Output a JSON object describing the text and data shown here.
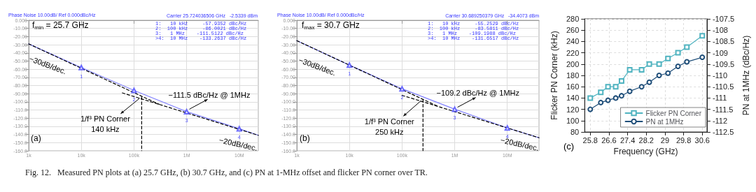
{
  "chart_data": [
    {
      "type": "line",
      "xlim": [
        1000,
        23000000
      ],
      "xticks": [
        {
          "value": 1000,
          "label": "1k"
        },
        {
          "value": 10000,
          "label": "10k"
        },
        {
          "value": 100000,
          "label": "100k"
        },
        {
          "value": 1000000,
          "label": "1M"
        },
        {
          "value": 10000000,
          "label": "10M"
        }
      ],
      "log": "x",
      "ylim": [
        -160,
        0
      ],
      "yticks": [
        {
          "value": 0,
          "label": "0.000"
        },
        {
          "value": -10,
          "label": "-10.00"
        },
        {
          "value": -20,
          "label": "-20.00"
        },
        {
          "value": -30,
          "label": "-30.00"
        },
        {
          "value": -40,
          "label": "-40.00"
        },
        {
          "value": -50,
          "label": "-50.00"
        },
        {
          "value": -60,
          "label": "-60.00"
        },
        {
          "value": -70,
          "label": "-70.00"
        },
        {
          "value": -80,
          "label": "-80.00"
        },
        {
          "value": -90,
          "label": "-90.00"
        },
        {
          "value": -100,
          "label": "-100.0"
        },
        {
          "value": -110,
          "label": "-110.0"
        },
        {
          "value": -120,
          "label": "-120.0"
        },
        {
          "value": -130,
          "label": "-130.0"
        },
        {
          "value": -140,
          "label": "-140.0"
        },
        {
          "value": -150,
          "label": "-150.0"
        },
        {
          "value": -160,
          "label": "-160.0"
        }
      ],
      "grid": true,
      "marker": "none",
      "series": [
        {
          "color": "#8080ff",
          "line_style": "solid",
          "x": [
            1000,
            10000,
            100000,
            1000000,
            10000000,
            23000000
          ],
          "values": [
            -29,
            -58,
            -86,
            -112,
            -133,
            -141
          ]
        },
        {
          "color": "#000000",
          "line_style": "dashed",
          "x": [
            1000,
            300000
          ],
          "values": [
            -29,
            -103
          ]
        },
        {
          "color": "#000000",
          "line_style": "dashed",
          "x": [
            60000,
            23000000
          ],
          "values": [
            -89,
            -141
          ]
        },
        {
          "color": "#000000",
          "line_style": "dashed",
          "x": [
            140000,
            140000
          ],
          "values": [
            -94,
            -160
          ]
        },
        {
          "type": "scatter",
          "marker": "triangle",
          "color": "#4a4aff",
          "x": [
            10000,
            100000,
            1000000,
            10000000
          ],
          "values": [
            -58,
            -86,
            -112,
            -133
          ]
        }
      ],
      "annotations": [
        "Phase Noise 10.00dB/ Ref 0.000dBc/Hz",
        "Carrier 25.724036506 GHz   -2.5339 dBm",
        "1:   10 kHz     -57.9352 dBc/Hz",
        "2:  100 kHz     -86.0021 dBc/Hz",
        "3:   1 MHz    -111.5122 dBc/Hz",
        ">4:  10 MHz    -133.2637 dBc/Hz",
        "f$_{min}$ = 25.7 GHz",
        "−30dB/dec.",
        "−20dB/dec.",
        "(a)",
        {
          "text": "1",
          "x": 10000,
          "y": -58
        },
        {
          "text": "2",
          "x": 100000,
          "y": -86
        },
        {
          "text": "3",
          "x": 1000000,
          "y": -112
        },
        {
          "text": "4",
          "x": 10000000,
          "y": -133
        },
        {
          "text": "−111.5 dBc/Hz @ 1MHz",
          "x": 1000000,
          "y": -111.5
        },
        {
          "text": "1/f³ PN Corner\n140 kHz",
          "x": 140000,
          "y": -94
        }
      ]
    },
    {
      "type": "line",
      "xlim": [
        1000,
        40000000
      ],
      "xticks": [
        {
          "value": 1000,
          "label": "1k"
        },
        {
          "value": 10000,
          "label": "10k"
        },
        {
          "value": 100000,
          "label": "100k"
        },
        {
          "value": 1000000,
          "label": "1M"
        },
        {
          "value": 10000000,
          "label": "10M"
        }
      ],
      "log": "x",
      "ylim": [
        -160,
        0
      ],
      "yticks": [
        {
          "value": 0,
          "label": "0.000"
        },
        {
          "value": -10,
          "label": "-10.00"
        },
        {
          "value": -20,
          "label": "-20.00"
        },
        {
          "value": -30,
          "label": "-30.00"
        },
        {
          "value": -40,
          "label": "-40.00"
        },
        {
          "value": -50,
          "label": "-50.00"
        },
        {
          "value": -60,
          "label": "-60.00"
        },
        {
          "value": -70,
          "label": "-70.00"
        },
        {
          "value": -80,
          "label": "-80.00"
        },
        {
          "value": -90,
          "label": "-90.00"
        },
        {
          "value": -100,
          "label": "-100.0"
        },
        {
          "value": -110,
          "label": "-110.0"
        },
        {
          "value": -120,
          "label": "-120.0"
        },
        {
          "value": -130,
          "label": "-130.0"
        },
        {
          "value": -140,
          "label": "-140.0"
        },
        {
          "value": -150,
          "label": "-150.0"
        },
        {
          "value": -160,
          "label": "-160.0"
        }
      ],
      "grid": true,
      "marker": "none",
      "series": [
        {
          "color": "#8080ff",
          "line_style": "solid",
          "x": [
            1000,
            10000,
            100000,
            1000000,
            10000000,
            40000000
          ],
          "values": [
            -25,
            -55,
            -84,
            -109,
            -132,
            -144
          ]
        },
        {
          "color": "#000000",
          "line_style": "dashed",
          "x": [
            1000,
            500000
          ],
          "values": [
            -25,
            -106
          ]
        },
        {
          "color": "#000000",
          "line_style": "dashed",
          "x": [
            100000,
            40000000
          ],
          "values": [
            -92,
            -144
          ]
        },
        {
          "color": "#000000",
          "line_style": "dashed",
          "x": [
            250000,
            250000
          ],
          "values": [
            -97,
            -160
          ]
        },
        {
          "type": "scatter",
          "marker": "triangle",
          "color": "#4a4aff",
          "x": [
            10000,
            100000,
            1000000,
            10000000
          ],
          "values": [
            -55,
            -84,
            -109,
            -132
          ]
        }
      ],
      "annotations": [
        "Phase Noise 10.00dB/ Ref 0.000dBc/Hz",
        "Carrier 30.689250379 GHz   -34.4073 dBm",
        "1:   10 kHz     -55.2529 dBc/Hz",
        "2:  100 kHz     -83.5811 dBc/Hz",
        "3:   1 MHz    -109.1988 dBc/Hz",
        ">4:  10 MHz    -131.6517 dBc/Hz",
        "f$_{max}$ = 30.7 GHz",
        "−30dB/dec.",
        "−20dB/dec.",
        "(b)",
        {
          "text": "1",
          "x": 10000,
          "y": -55
        },
        {
          "text": "2",
          "x": 100000,
          "y": -84
        },
        {
          "text": "3",
          "x": 1000000,
          "y": -109
        },
        {
          "text": "4",
          "x": 10000000,
          "y": -132
        },
        {
          "text": "−109.2 dBc/Hz @ 1MHz",
          "x": 1000000,
          "y": -109.2
        },
        {
          "text": "1/f³ PN Corner\n250 kHz",
          "x": 250000,
          "y": -97
        }
      ]
    },
    {
      "type": "line",
      "xlabel": "Frequency (GHz)",
      "ylabel": "Flicker PN Corner (kHz)",
      "y2label": "PN at 1MHz (dBc/Hz)",
      "x": [
        25.8,
        26.25,
        26.56,
        26.89,
        27.14,
        27.49,
        28.0,
        28.33,
        28.75,
        29.13,
        29.56,
        29.94,
        30.6
      ],
      "xlim": [
        25.56,
        30.8
      ],
      "xticks": [
        25.8,
        26.6,
        27.4,
        28.2,
        29,
        29.8,
        30.6
      ],
      "ylim": [
        80,
        280
      ],
      "yticks": [
        80,
        100,
        120,
        140,
        160,
        180,
        200,
        220,
        240,
        260,
        280
      ],
      "y2lim": [
        -112.5,
        -107.5
      ],
      "y2ticks": [
        -112.5,
        -112,
        -111.5,
        -111,
        -110.5,
        -110,
        -109.5,
        -109,
        -108.5,
        -108,
        -107.5
      ],
      "grid": true,
      "legend": "bottom right",
      "series": [
        {
          "name": "Flicker PN Corner",
          "color": "#4fb3c0",
          "marker": "square",
          "values": [
            140,
            150,
            160,
            160,
            170,
            190,
            190,
            200,
            200,
            210,
            220,
            230,
            250
          ]
        },
        {
          "name": "PN at 1MHz",
          "color": "#1f4e79",
          "marker": "circle",
          "axis": "y2",
          "values": [
            -111.5,
            -111.2,
            -111.1,
            -111.0,
            -110.9,
            -110.7,
            -110.5,
            -110.3,
            -110.0,
            -109.9,
            -109.6,
            -109.4,
            -109.2
          ]
        }
      ],
      "annotations": [
        "(c)",
        "Fig. 12.   Measured PN plots at (a) 25.7 GHz, (b) 30.7 GHz, and (c) PN at 1-MHz offset and flicker PN corner over TR."
      ]
    }
  ]
}
